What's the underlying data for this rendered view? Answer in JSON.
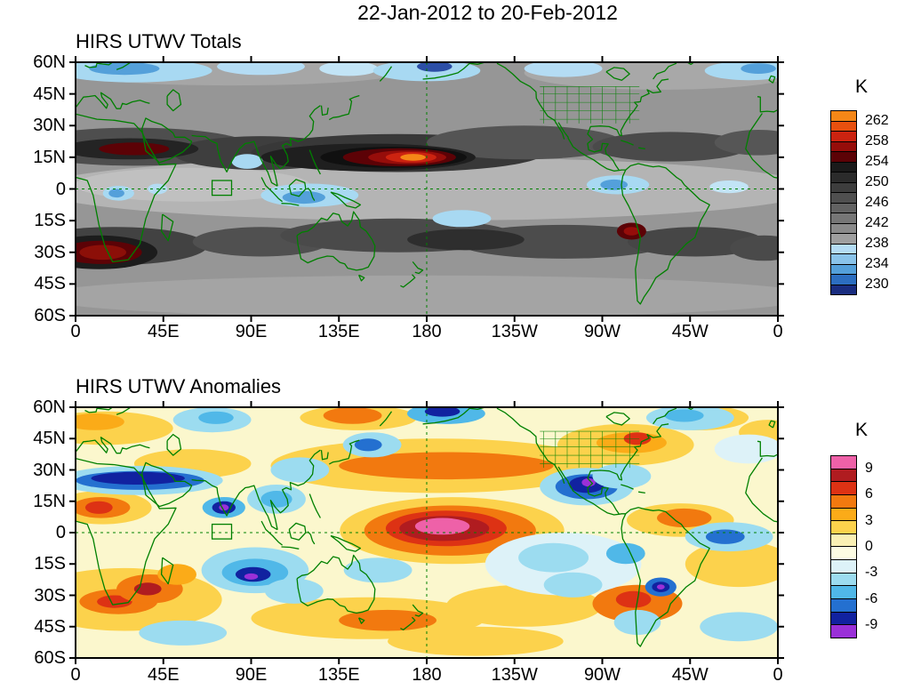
{
  "header": {
    "date_range": "22-Jan-2012 to 20-Feb-2012"
  },
  "style": {
    "background": "#ffffff",
    "frame_color": "#000000",
    "coastline_color": "#008000",
    "reference_line_color": "#008000",
    "text_color": "#000000"
  },
  "chart_data": [
    {
      "type": "heatmap",
      "title": "HIRS UTWV Totals",
      "units": "K",
      "x_axis": {
        "ticks": [
          "0",
          "45E",
          "90E",
          "135E",
          "180",
          "135W",
          "90W",
          "45W",
          "0"
        ],
        "lon_range": [
          0,
          360
        ]
      },
      "y_axis": {
        "ticks": [
          "60N",
          "45N",
          "30N",
          "15N",
          "0",
          "15S",
          "30S",
          "45S",
          "60S"
        ],
        "lat_range": [
          60,
          -60
        ]
      },
      "colorbar": {
        "title": "K",
        "tick_labels": [
          "262",
          "258",
          "254",
          "250",
          "246",
          "242",
          "238",
          "234",
          "230"
        ],
        "colors_top_to_bottom": [
          "#f58717",
          "#e8500e",
          "#cc2310",
          "#960d0a",
          "#5c0206",
          "#1a1a1a",
          "#2b2b2b",
          "#3d3d3d",
          "#4f4f4f",
          "#626262",
          "#767676",
          "#8a8a8a",
          "#9f9f9f",
          "#b4dcf4",
          "#8ac4ea",
          "#54a0da",
          "#2c6ec0",
          "#1a2d80"
        ]
      },
      "base_color": "#969696",
      "reference_lines": {
        "lon": 180,
        "lat": 0
      },
      "roi_box": {
        "lon": [
          70,
          80
        ],
        "lat": [
          -3,
          4
        ]
      },
      "features_schema": [
        "lon_deg_east",
        "lat_deg",
        "width_deg",
        "height_deg",
        "fill_color"
      ],
      "features": [
        [
          180,
          0,
          400,
          30,
          "#b4b4b4"
        ],
        [
          60,
          2,
          120,
          16,
          "#c0c0c0"
        ],
        [
          300,
          55,
          140,
          16,
          "#a8a8a8"
        ],
        [
          80,
          56,
          180,
          14,
          "#a6a6a6"
        ],
        [
          180,
          -51,
          400,
          20,
          "#a4a4a4"
        ],
        [
          30,
          20,
          120,
          18,
          "#4e4e4e"
        ],
        [
          95,
          17,
          90,
          16,
          "#3e3e3e"
        ],
        [
          165,
          17,
          150,
          18,
          "#383838"
        ],
        [
          230,
          22,
          100,
          16,
          "#545454"
        ],
        [
          305,
          20,
          80,
          14,
          "#4a4a4a"
        ],
        [
          350,
          22,
          45,
          12,
          "#565656"
        ],
        [
          20,
          -27,
          95,
          18,
          "#424242"
        ],
        [
          95,
          -25,
          70,
          14,
          "#505050"
        ],
        [
          165,
          -22,
          120,
          16,
          "#4a4a4a"
        ],
        [
          250,
          -25,
          110,
          16,
          "#4c4c4c"
        ],
        [
          318,
          -25,
          70,
          14,
          "#464646"
        ],
        [
          353,
          -28,
          35,
          12,
          "#4a4a4a"
        ],
        [
          150,
          15,
          110,
          13,
          "#1f1f1f"
        ],
        [
          163,
          15,
          75,
          10,
          "#101010"
        ],
        [
          166,
          15,
          58,
          8.5,
          "#5c0206"
        ],
        [
          170,
          15,
          40,
          6.5,
          "#960d0a"
        ],
        [
          172,
          15,
          26,
          5,
          "#cc2310"
        ],
        [
          173,
          15,
          13,
          3.2,
          "#f58717"
        ],
        [
          28,
          19,
          70,
          10,
          "#242424"
        ],
        [
          30,
          19,
          36,
          6,
          "#5c0206"
        ],
        [
          12,
          -30,
          60,
          16,
          "#1c1c1c"
        ],
        [
          13,
          -30,
          42,
          11,
          "#5c0206"
        ],
        [
          14,
          -30,
          24,
          7,
          "#8c0f08"
        ],
        [
          285,
          -20,
          15,
          8,
          "#5c0206"
        ],
        [
          285,
          -20,
          8,
          4,
          "#960d0a"
        ],
        [
          200,
          -24,
          60,
          10,
          "#2e2e2e"
        ],
        [
          120,
          -3,
          50,
          11,
          "#a8d9f2"
        ],
        [
          117,
          -4,
          22,
          6,
          "#54a0da"
        ],
        [
          88,
          13,
          16,
          7,
          "#a8d9f2"
        ],
        [
          22,
          -2,
          16,
          7,
          "#a8d9f2"
        ],
        [
          21,
          -2,
          8,
          4,
          "#54a0da"
        ],
        [
          42,
          0,
          10,
          5,
          "#b4dcf4"
        ],
        [
          198,
          -14,
          30,
          8,
          "#a8d9f2"
        ],
        [
          278,
          2,
          32,
          9,
          "#a8d9f2"
        ],
        [
          276,
          2,
          14,
          5,
          "#54a0da"
        ],
        [
          335,
          1,
          20,
          6,
          "#c2e4f6"
        ],
        [
          30,
          56,
          80,
          11,
          "#a8d9f2"
        ],
        [
          25,
          57,
          36,
          6,
          "#54a0da"
        ],
        [
          95,
          58,
          45,
          8,
          "#b4dcf4"
        ],
        [
          140,
          57,
          30,
          7,
          "#c2e4f6"
        ],
        [
          180,
          56,
          55,
          10,
          "#a8d9f2"
        ],
        [
          184,
          58,
          18,
          5,
          "#2c4ea6"
        ],
        [
          250,
          57,
          40,
          8,
          "#b4dcf4"
        ],
        [
          345,
          56,
          45,
          9,
          "#a8d9f2"
        ],
        [
          350,
          57,
          18,
          5,
          "#54a0da"
        ]
      ]
    },
    {
      "type": "heatmap",
      "title": "HIRS UTWV Anomalies",
      "units": "K",
      "x_axis": {
        "ticks": [
          "0",
          "45E",
          "90E",
          "135E",
          "180",
          "135W",
          "90W",
          "45W",
          "0"
        ],
        "lon_range": [
          0,
          360
        ]
      },
      "y_axis": {
        "ticks": [
          "60N",
          "45N",
          "30N",
          "15N",
          "0",
          "15S",
          "30S",
          "45S",
          "60S"
        ],
        "lat_range": [
          60,
          -60
        ]
      },
      "colorbar": {
        "title": "K",
        "tick_labels": [
          "9",
          "6",
          "3",
          "0",
          "-3",
          "-6",
          "-9"
        ],
        "colors_top_to_bottom": [
          "#ee61a8",
          "#b01c20",
          "#dd3214",
          "#f2790f",
          "#fbab18",
          "#fcd24c",
          "#faf0b4",
          "#fdfce3",
          "#ddf2f8",
          "#9cdcf0",
          "#50b8e8",
          "#2470d0",
          "#1122a0",
          "#9a30d8"
        ]
      },
      "base_color": "#fbf7cd",
      "reference_lines": {
        "lon": 180,
        "lat": 0
      },
      "roi_box": {
        "lon": [
          70,
          80
        ],
        "lat": [
          -3,
          4
        ]
      },
      "features_schema": [
        "lon_deg_east",
        "lat_deg",
        "width_deg",
        "height_deg",
        "fill_color"
      ],
      "features": [
        [
          25,
          -32,
          100,
          30,
          "#fcd24c"
        ],
        [
          150,
          -41,
          120,
          20,
          "#fcd24c"
        ],
        [
          160,
          -42,
          50,
          10,
          "#f2790f"
        ],
        [
          185,
          32,
          170,
          26,
          "#fcd24c"
        ],
        [
          190,
          32,
          110,
          13,
          "#f2790f"
        ],
        [
          145,
          55,
          60,
          12,
          "#fcd24c"
        ],
        [
          142,
          56,
          30,
          8,
          "#f2790f"
        ],
        [
          15,
          50,
          70,
          16,
          "#fcd24c"
        ],
        [
          10,
          53,
          30,
          8,
          "#fbab18"
        ],
        [
          60,
          33,
          60,
          14,
          "#fcd24c"
        ],
        [
          282,
          42,
          70,
          20,
          "#fcd24c"
        ],
        [
          285,
          43,
          36,
          10,
          "#fbab18"
        ],
        [
          288,
          45,
          14,
          6,
          "#dd3214"
        ],
        [
          310,
          6,
          55,
          16,
          "#fcd24c"
        ],
        [
          312,
          7,
          28,
          9,
          "#f2790f"
        ],
        [
          340,
          -15,
          55,
          22,
          "#fcd24c"
        ],
        [
          230,
          -35,
          80,
          20,
          "#fcd24c"
        ],
        [
          205,
          -52,
          90,
          14,
          "#fcd24c"
        ],
        [
          320,
          55,
          50,
          12,
          "#fcd24c"
        ],
        [
          322,
          56,
          24,
          7,
          "#f2790f"
        ],
        [
          355,
          48,
          30,
          12,
          "#fcd24c"
        ],
        [
          193,
          1,
          115,
          32,
          "#fcd24c"
        ],
        [
          192,
          1,
          88,
          24,
          "#f2790f"
        ],
        [
          190,
          2,
          62,
          17,
          "#dd3214"
        ],
        [
          189,
          2,
          46,
          12,
          "#b01c20"
        ],
        [
          188,
          3,
          28,
          8,
          "#ee61a8"
        ],
        [
          14,
          12,
          50,
          16,
          "#fcd24c"
        ],
        [
          13,
          12,
          30,
          10,
          "#f2790f"
        ],
        [
          12,
          12,
          14,
          6,
          "#dd3214"
        ],
        [
          22,
          -33,
          40,
          12,
          "#f2790f"
        ],
        [
          20,
          -33,
          18,
          6,
          "#dd3214"
        ],
        [
          38,
          -27,
          34,
          14,
          "#f2790f"
        ],
        [
          37,
          -27,
          14,
          6,
          "#b01c20"
        ],
        [
          52,
          -20,
          20,
          10,
          "#fbab18"
        ],
        [
          288,
          -34,
          46,
          18,
          "#f2790f"
        ],
        [
          286,
          -32,
          18,
          8,
          "#dd3214"
        ],
        [
          33,
          25,
          85,
          14,
          "#9cdcf0"
        ],
        [
          33,
          25,
          66,
          9,
          "#2470d0"
        ],
        [
          32,
          26,
          48,
          6,
          "#1122a0"
        ],
        [
          70,
          54,
          40,
          12,
          "#9cdcf0"
        ],
        [
          72,
          55,
          18,
          6,
          "#50b8e8"
        ],
        [
          76,
          12,
          22,
          10,
          "#50b8e8"
        ],
        [
          76,
          12,
          12,
          6,
          "#1122a0"
        ],
        [
          76,
          12,
          5,
          3,
          "#9a30d8"
        ],
        [
          103,
          16,
          30,
          14,
          "#9cdcf0"
        ],
        [
          103,
          16,
          16,
          8,
          "#50b8e8"
        ],
        [
          115,
          30,
          30,
          12,
          "#9cdcf0"
        ],
        [
          152,
          42,
          30,
          12,
          "#9cdcf0"
        ],
        [
          150,
          42,
          14,
          6,
          "#2470d0"
        ],
        [
          190,
          57,
          40,
          10,
          "#50b8e8"
        ],
        [
          188,
          58,
          18,
          5,
          "#1122a0"
        ],
        [
          92,
          -18,
          55,
          22,
          "#9cdcf0"
        ],
        [
          92,
          -19,
          34,
          13,
          "#50b8e8"
        ],
        [
          91,
          -20,
          18,
          7,
          "#1122a0"
        ],
        [
          90,
          -21,
          7,
          3,
          "#9a30d8"
        ],
        [
          112,
          -28,
          30,
          12,
          "#9cdcf0"
        ],
        [
          155,
          -18,
          35,
          12,
          "#9cdcf0"
        ],
        [
          262,
          22,
          48,
          18,
          "#9cdcf0"
        ],
        [
          262,
          22,
          32,
          12,
          "#2470d0"
        ],
        [
          262,
          23,
          18,
          8,
          "#1122a0"
        ],
        [
          263,
          24,
          7,
          4,
          "#9a30d8"
        ],
        [
          280,
          27,
          30,
          12,
          "#9cdcf0"
        ],
        [
          250,
          -15,
          80,
          30,
          "#ddf2f8"
        ],
        [
          245,
          -12,
          36,
          14,
          "#9cdcf0"
        ],
        [
          255,
          -25,
          30,
          12,
          "#9cdcf0"
        ],
        [
          282,
          -10,
          20,
          10,
          "#50b8e8"
        ],
        [
          300,
          -26,
          16,
          9,
          "#2470d0"
        ],
        [
          300,
          -26,
          9,
          5,
          "#1122a0"
        ],
        [
          300,
          -26,
          4,
          2.5,
          "#9a30d8"
        ],
        [
          288,
          -43,
          24,
          12,
          "#9cdcf0"
        ],
        [
          335,
          -2,
          45,
          14,
          "#9cdcf0"
        ],
        [
          333,
          -2,
          20,
          7,
          "#2470d0"
        ],
        [
          315,
          55,
          45,
          12,
          "#9cdcf0"
        ],
        [
          312,
          56,
          20,
          6,
          "#50b8e8"
        ],
        [
          345,
          40,
          35,
          14,
          "#ddf2f8"
        ],
        [
          340,
          -45,
          40,
          14,
          "#9cdcf0"
        ],
        [
          55,
          -48,
          45,
          12,
          "#9cdcf0"
        ]
      ]
    }
  ]
}
